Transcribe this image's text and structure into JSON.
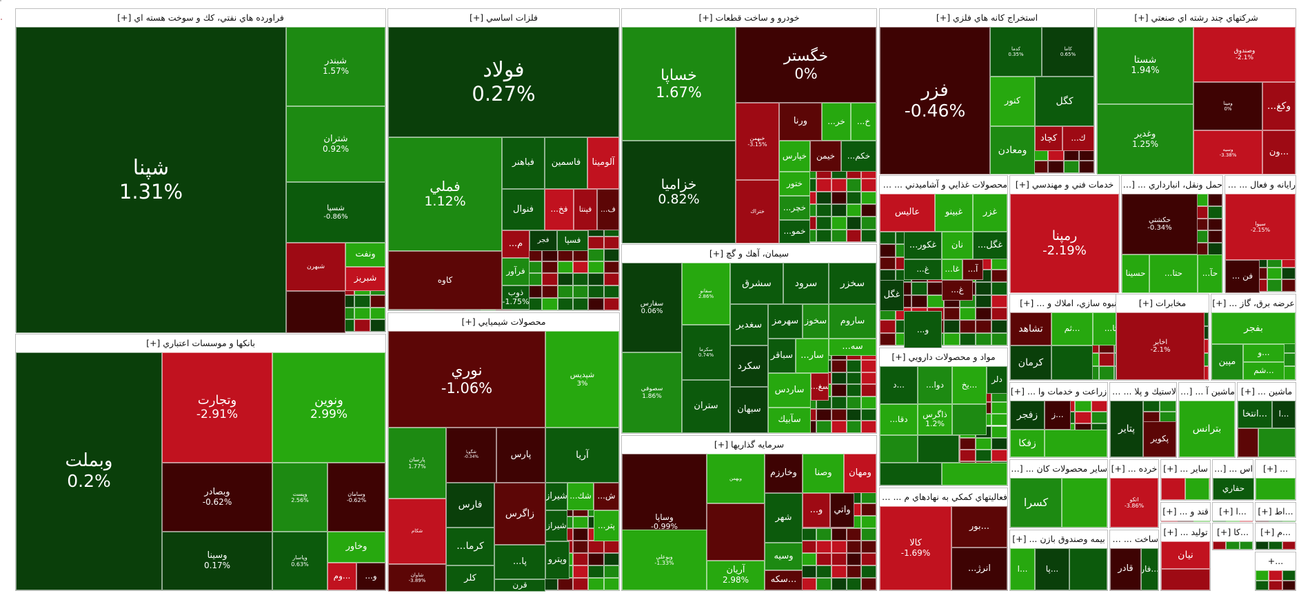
{
  "colors": {
    "strong_green": "#27a80f",
    "green": "#1d8a12",
    "dark_green": "#0c5a0c",
    "very_dark_green": "#0a3f0a",
    "strong_red": "#c1121f",
    "red": "#9e0a14",
    "dark_red": "#5c0606",
    "deep_red": "#3e0303"
  },
  "chart_data": {
    "type": "heatmap",
    "sectors": [
      {
        "name": "فراورده هاي نفتي، كك و سوخت هسته اي [+]",
        "symbols": [
          {
            "name": "شپنا",
            "change": "1.31%"
          },
          {
            "name": "شبندر",
            "change": "1.57%"
          },
          {
            "name": "شتران",
            "change": "0.92%"
          },
          {
            "name": "شسپا",
            "change": "-0.86%"
          },
          {
            "name": "شبهرن",
            "change": ""
          },
          {
            "name": "ونفت",
            "change": ""
          },
          {
            "name": "شبريز",
            "change": ""
          }
        ]
      },
      {
        "name": "فلزات اساسي [+]",
        "symbols": [
          {
            "name": "فولاد",
            "change": "0.27%"
          },
          {
            "name": "فملي",
            "change": "1.12%"
          },
          {
            "name": "فباهنر",
            "change": ""
          },
          {
            "name": "فاسمين",
            "change": ""
          },
          {
            "name": "آلومينا",
            "change": ""
          },
          {
            "name": "فنوال",
            "change": ""
          },
          {
            "name": "فخ...",
            "change": ""
          },
          {
            "name": "فپنتا",
            "change": ""
          },
          {
            "name": "ف...",
            "change": ""
          },
          {
            "name": "كاوه",
            "change": ""
          },
          {
            "name": "م...",
            "change": ""
          },
          {
            "name": "فجر",
            "change": ""
          },
          {
            "name": "فسپا",
            "change": ""
          },
          {
            "name": "فرآور",
            "change": ""
          },
          {
            "name": "ذوب",
            "change": "-1.75%"
          }
        ]
      },
      {
        "name": "خودرو و ساخت قطعات [+]",
        "symbols": [
          {
            "name": "خساپا",
            "change": "1.67%"
          },
          {
            "name": "خگستر",
            "change": "0%"
          },
          {
            "name": "خزاميا",
            "change": "0.82%"
          },
          {
            "name": "خبهمن",
            "change": "-3.15%"
          },
          {
            "name": "ورنا",
            "change": ""
          },
          {
            "name": "خر...",
            "change": ""
          },
          {
            "name": "خ...",
            "change": ""
          },
          {
            "name": "خپارس",
            "change": ""
          },
          {
            "name": "خيمن",
            "change": ""
          },
          {
            "name": "خكم...",
            "change": ""
          },
          {
            "name": "ختور",
            "change": ""
          },
          {
            "name": "خچر...",
            "change": ""
          },
          {
            "name": "خمو...",
            "change": ""
          },
          {
            "name": "ختراك",
            "change": ""
          },
          {
            "name": "خاهن",
            "change": "-3.05%"
          }
        ]
      },
      {
        "name": "استخراج كانه هاي فلزي [+]",
        "symbols": [
          {
            "name": "فزر",
            "change": "-0.46%"
          },
          {
            "name": "كگل",
            "change": ""
          },
          {
            "name": "كنور",
            "change": ""
          },
          {
            "name": "كچاد",
            "change": ""
          },
          {
            "name": "ك...",
            "change": ""
          },
          {
            "name": "ومعادن",
            "change": ""
          },
          {
            "name": "كدما",
            "change": "0.35%"
          },
          {
            "name": "كاما",
            "change": "0.65%"
          }
        ]
      },
      {
        "name": "شركتهاي چند رشته اي صنعتي [+]",
        "symbols": [
          {
            "name": "شستا",
            "change": "1.94%"
          },
          {
            "name": "وصندوق",
            "change": "-2.1%"
          },
          {
            "name": "وغدير",
            "change": "1.25%"
          },
          {
            "name": "وكغ...",
            "change": ""
          },
          {
            "name": "ومپنا",
            "change": "0%"
          },
          {
            "name": "وسيه",
            "change": "-3.38%"
          },
          {
            "name": "...ون",
            "change": ""
          }
        ]
      },
      {
        "name": "بانكها و موسسات اعتباري [+]",
        "symbols": [
          {
            "name": "وبملت",
            "change": "0.2%"
          },
          {
            "name": "وتجارت",
            "change": "-2.91%"
          },
          {
            "name": "ونوين",
            "change": "2.99%"
          },
          {
            "name": "وبصادر",
            "change": "-0.62%"
          },
          {
            "name": "وپست",
            "change": "2.56%"
          },
          {
            "name": "وسامان",
            "change": "-0.62%"
          },
          {
            "name": "وسينا",
            "change": "0.17%"
          },
          {
            "name": "وپاسار",
            "change": "0.63%"
          },
          {
            "name": "وخاور",
            "change": ""
          },
          {
            "name": "...وم",
            "change": ""
          },
          {
            "name": "و...",
            "change": ""
          }
        ]
      },
      {
        "name": "محصولات شيميايي [+]",
        "symbols": [
          {
            "name": "نوري",
            "change": "-1.06%"
          },
          {
            "name": "شپديس",
            "change": "3%"
          },
          {
            "name": "پارسان",
            "change": "1.77%"
          },
          {
            "name": "شگويا",
            "change": "-0.34%"
          },
          {
            "name": "پارس",
            "change": ""
          },
          {
            "name": "آريا",
            "change": ""
          },
          {
            "name": "فارس",
            "change": ""
          },
          {
            "name": "زاگرس",
            "change": ""
          },
          {
            "name": "شيراز",
            "change": ""
          },
          {
            "name": "شك...",
            "change": ""
          },
          {
            "name": "ش...",
            "change": ""
          },
          {
            "name": "كرما...",
            "change": ""
          },
          {
            "name": "شيراز",
            "change": ""
          },
          {
            "name": "پتر...",
            "change": ""
          },
          {
            "name": "پا...",
            "change": ""
          },
          {
            "name": "وپترو",
            "change": ""
          },
          {
            "name": "كلر",
            "change": ""
          },
          {
            "name": "قرن",
            "change": ""
          },
          {
            "name": "شكام",
            "change": ""
          },
          {
            "name": "شاوان",
            "change": "-3.89%"
          },
          {
            "name": "شتوكا",
            "change": "0%"
          }
        ]
      },
      {
        "name": "سيمان، آهك و گچ [+]",
        "symbols": [
          {
            "name": "سفارس",
            "change": "0.06%"
          },
          {
            "name": "سفانو",
            "change": "2.86%"
          },
          {
            "name": "سشرق",
            "change": ""
          },
          {
            "name": "سرود",
            "change": ""
          },
          {
            "name": "سخزر",
            "change": ""
          },
          {
            "name": "سغدير",
            "change": ""
          },
          {
            "name": "سهرمز",
            "change": ""
          },
          {
            "name": "سخوز",
            "change": ""
          },
          {
            "name": "ساروم",
            "change": ""
          },
          {
            "name": "سصوفي",
            "change": "1.86%"
          },
          {
            "name": "سكرد",
            "change": ""
          },
          {
            "name": "سباقر",
            "change": ""
          },
          {
            "name": "سار...",
            "change": ""
          },
          {
            "name": "سه...",
            "change": ""
          },
          {
            "name": "ساردس",
            "change": ""
          },
          {
            "name": "سغ...",
            "change": ""
          },
          {
            "name": "ستران",
            "change": ""
          },
          {
            "name": "سبهان",
            "change": ""
          },
          {
            "name": "سآبيك",
            "change": ""
          },
          {
            "name": "سكرما",
            "change": "0.74%"
          }
        ]
      },
      {
        "name": "سرمايه گذاريها [+]",
        "symbols": [
          {
            "name": "وساپا",
            "change": "-0.99%"
          },
          {
            "name": "وبهمن",
            "change": ""
          },
          {
            "name": "وخارزم",
            "change": ""
          },
          {
            "name": "وصنا",
            "change": ""
          },
          {
            "name": "ومهان",
            "change": ""
          },
          {
            "name": "شهر",
            "change": ""
          },
          {
            "name": "و...",
            "change": ""
          },
          {
            "name": "واتي",
            "change": ""
          },
          {
            "name": "وسيه",
            "change": ""
          },
          {
            "name": "...سكه",
            "change": ""
          },
          {
            "name": "آريان",
            "change": "2.98%"
          },
          {
            "name": "وبوعلي",
            "change": "-1.33%"
          }
        ]
      },
      {
        "name": "محصولات غذايي و آشاميدني ... [+]",
        "symbols": [
          {
            "name": "عاليس",
            "change": ""
          },
          {
            "name": "غبينو",
            "change": ""
          },
          {
            "name": "غزر",
            "change": ""
          },
          {
            "name": "غكور...",
            "change": ""
          },
          {
            "name": "نان",
            "change": ""
          },
          {
            "name": "غگل...",
            "change": ""
          },
          {
            "name": "غ...",
            "change": ""
          },
          {
            "name": "غا...",
            "change": ""
          },
          {
            "name": "آ...",
            "change": ""
          },
          {
            "name": "غگل",
            "change": ""
          },
          {
            "name": "غ...",
            "change": ""
          },
          {
            "name": "و...",
            "change": ""
          }
        ]
      },
      {
        "name": "خدمات فني و مهندسي [+]",
        "symbols": [
          {
            "name": "رمپنا",
            "change": "-2.19%"
          }
        ]
      },
      {
        "name": "حمل ونقل، انبارداري ... [+]",
        "symbols": [
          {
            "name": "حكشتي",
            "change": "-0.34%"
          },
          {
            "name": "حآ...",
            "change": ""
          },
          {
            "name": "حتا...",
            "change": ""
          },
          {
            "name": "حسينا",
            "change": ""
          }
        ]
      },
      {
        "name": "رايانه و فعال ... [+]",
        "symbols": [
          {
            "name": "سيوا",
            "change": "-2.15%"
          },
          {
            "name": "فن ...",
            "change": ""
          }
        ]
      },
      {
        "name": "انبوه سازي، املاك و ... [+]",
        "symbols": [
          {
            "name": "تشاهد",
            "change": ""
          },
          {
            "name": "...ثم",
            "change": ""
          },
          {
            "name": "ثا...",
            "change": ""
          },
          {
            "name": "كرمان",
            "change": ""
          }
        ]
      },
      {
        "name": "مخابرات [+]",
        "symbols": [
          {
            "name": "اخابر",
            "change": "-2.1%"
          }
        ]
      },
      {
        "name": "عرضه برق، گاز ... [+]",
        "symbols": [
          {
            "name": "بفجر",
            "change": ""
          },
          {
            "name": "مپين",
            "change": ""
          },
          {
            "name": "...و",
            "change": ""
          },
          {
            "name": "...شم",
            "change": ""
          }
        ]
      },
      {
        "name": "مواد و محصولات دارويي [+]",
        "symbols": [
          {
            "name": "...د",
            "change": ""
          },
          {
            "name": "دوا...",
            "change": ""
          },
          {
            "name": "...يخ",
            "change": ""
          },
          {
            "name": "دلر",
            "change": ""
          },
          {
            "name": "دقا...",
            "change": ""
          },
          {
            "name": "ذاگرس",
            "change": "1.2%"
          }
        ]
      },
      {
        "name": "زراعت و خدمات وا ... [+]",
        "symbols": [
          {
            "name": "زفجر",
            "change": ""
          },
          {
            "name": "...ز",
            "change": ""
          },
          {
            "name": "زفكا",
            "change": ""
          }
        ]
      },
      {
        "name": "لاستيك و پلا ... [+]",
        "symbols": [
          {
            "name": "پتاير",
            "change": ""
          },
          {
            "name": "پكوير",
            "change": ""
          }
        ]
      },
      {
        "name": "ماشين آ ... [+]",
        "symbols": [
          {
            "name": "بترانس",
            "change": ""
          }
        ]
      },
      {
        "name": "ماشين ... [+]",
        "symbols": [
          {
            "name": "...انتخا",
            "change": ""
          },
          {
            "name": "...ا",
            "change": ""
          }
        ]
      },
      {
        "name": "فعاليتهاي كمكي به نهادهاي م ... [+]",
        "symbols": [
          {
            "name": "كالا",
            "change": "-1.69%"
          },
          {
            "name": "...بور",
            "change": ""
          },
          {
            "name": "انرژ...",
            "change": ""
          },
          {
            "name": "...فرا",
            "change": ""
          }
        ]
      },
      {
        "name": "ساير محصولات كان ... [+]",
        "symbols": [
          {
            "name": "كسرا",
            "change": ""
          }
        ]
      },
      {
        "name": "خرده ... [+]",
        "symbols": [
          {
            "name": "اتكو",
            "change": "-3.86%"
          }
        ]
      },
      {
        "name": "ساير ... [+]",
        "symbols": []
      },
      {
        "name": "اس ... [+]",
        "symbols": [
          {
            "name": "حفاري",
            "change": ""
          }
        ]
      },
      {
        "name": "... [+]",
        "symbols": []
      },
      {
        "name": "قند و ... [+]",
        "symbols": []
      },
      {
        "name": "...ا [+]",
        "symbols": []
      },
      {
        "name": "...اط [+]",
        "symbols": []
      },
      {
        "name": "بيمه وصندوق بازن ... [+]",
        "symbols": [
          {
            "name": "...ا",
            "change": ""
          },
          {
            "name": "...پا",
            "change": ""
          }
        ]
      },
      {
        "name": "ساخت ... [+]",
        "symbols": [
          {
            "name": "قادر",
            "change": ""
          },
          {
            "name": "...فار",
            "change": ""
          }
        ]
      },
      {
        "name": "توليد ... [+]",
        "symbols": [
          {
            "name": "نيان",
            "change": ""
          }
        ]
      },
      {
        "name": "...كا [+]",
        "symbols": []
      },
      {
        "name": "...م [+]",
        "symbols": []
      },
      {
        "name": "...+",
        "symbols": []
      },
      {
        "name": "...+",
        "symbols": []
      }
    ]
  }
}
